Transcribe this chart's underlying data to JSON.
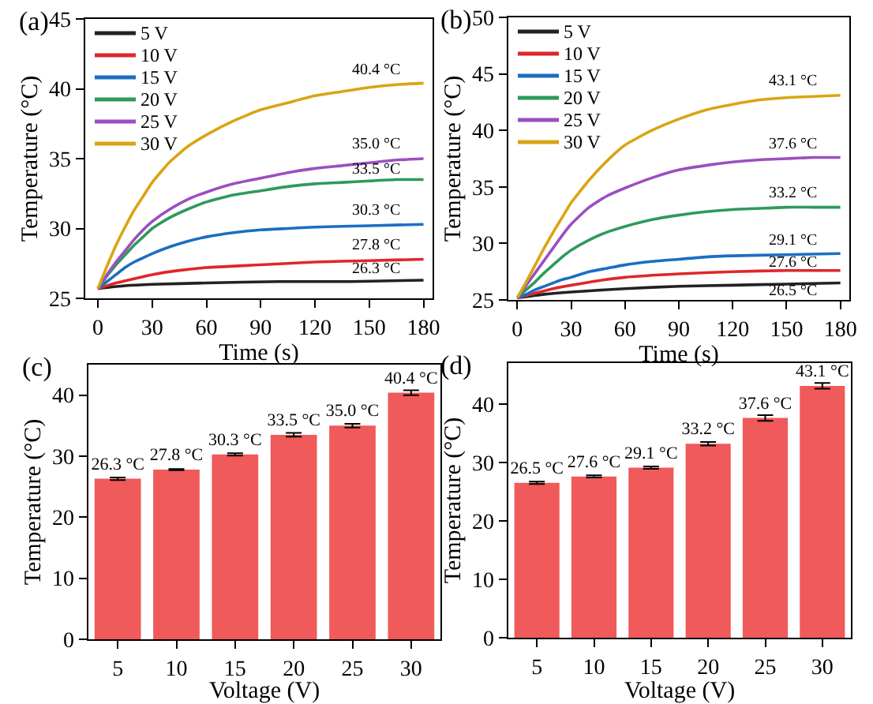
{
  "chart_data": [
    {
      "type": "line",
      "title": "(a)",
      "xlabel": "Time (s)",
      "ylabel": "Temperature (°C)",
      "xlim": [
        -7,
        185
      ],
      "xticks": [
        0,
        30,
        60,
        90,
        120,
        150,
        180
      ],
      "ylim": [
        25,
        45
      ],
      "yticks": [
        25,
        30,
        35,
        40,
        45
      ],
      "legend": "top left",
      "x": [
        0,
        5,
        10,
        15,
        20,
        25,
        30,
        40,
        50,
        60,
        75,
        90,
        105,
        120,
        135,
        150,
        165,
        180
      ],
      "series": [
        {
          "name": "5 V",
          "color": "#222222",
          "x": [
            0,
            15,
            30,
            60,
            100,
            140,
            180
          ],
          "values": [
            25.7,
            25.9,
            26.0,
            26.1,
            26.2,
            26.2,
            26.3
          ]
        },
        {
          "name": "10 V",
          "color": "#e0262b",
          "x": [
            0,
            10,
            20,
            30,
            45,
            60,
            90,
            120,
            150,
            180
          ],
          "values": [
            25.7,
            26.1,
            26.4,
            26.7,
            27.0,
            27.2,
            27.4,
            27.6,
            27.7,
            27.8
          ]
        },
        {
          "name": "15 V",
          "color": "#1b6ec2",
          "x": [
            0,
            5,
            10,
            15,
            20,
            25,
            30,
            40,
            50,
            60,
            75,
            90,
            105,
            120,
            150,
            180
          ],
          "values": [
            25.7,
            26.2,
            26.7,
            27.2,
            27.6,
            27.9,
            28.2,
            28.7,
            29.1,
            29.4,
            29.7,
            29.9,
            30.0,
            30.1,
            30.2,
            30.3
          ]
        },
        {
          "name": "20 V",
          "color": "#2e9a5a",
          "values": [
            25.7,
            26.6,
            27.4,
            28.1,
            28.8,
            29.4,
            30.0,
            30.8,
            31.4,
            31.9,
            32.4,
            32.7,
            33.0,
            33.2,
            33.3,
            33.4,
            33.5,
            33.5
          ]
        },
        {
          "name": "25 V",
          "color": "#9b4fc0",
          "values": [
            25.7,
            26.7,
            27.6,
            28.4,
            29.2,
            29.9,
            30.5,
            31.4,
            32.1,
            32.6,
            33.2,
            33.6,
            34.0,
            34.3,
            34.5,
            34.7,
            34.9,
            35.0
          ]
        },
        {
          "name": "30 V",
          "color": "#d9a514",
          "values": [
            25.7,
            27.3,
            28.8,
            30.1,
            31.3,
            32.3,
            33.3,
            34.8,
            35.9,
            36.7,
            37.7,
            38.5,
            39.0,
            39.5,
            39.8,
            40.1,
            40.3,
            40.4
          ]
        }
      ],
      "annotations": [
        {
          "text": "40.4 °C",
          "y": 40.4
        },
        {
          "text": "35.0 °C",
          "y": 35.0
        },
        {
          "text": "33.5 °C",
          "y": 33.5
        },
        {
          "text": "30.3 °C",
          "y": 30.3
        },
        {
          "text": "27.8 °C",
          "y": 27.8
        },
        {
          "text": "26.3 °C",
          "y": 26.3
        }
      ]
    },
    {
      "type": "line",
      "title": "(b)",
      "xlabel": "Time (s)",
      "ylabel": "Temperature (°C)",
      "xlim": [
        -5,
        185
      ],
      "xticks": [
        0,
        30,
        60,
        90,
        120,
        150,
        180
      ],
      "ylim": [
        25,
        50
      ],
      "yticks": [
        25,
        30,
        35,
        40,
        45,
        50
      ],
      "legend": "top left",
      "x": [
        0,
        5,
        10,
        15,
        20,
        25,
        30,
        40,
        50,
        60,
        75,
        90,
        105,
        120,
        135,
        150,
        165,
        180
      ],
      "series": [
        {
          "name": "5 V",
          "color": "#222222",
          "x": [
            0,
            15,
            30,
            60,
            90,
            120,
            150,
            180
          ],
          "values": [
            25.2,
            25.5,
            25.7,
            26.0,
            26.2,
            26.3,
            26.4,
            26.5
          ]
        },
        {
          "name": "10 V",
          "color": "#e0262b",
          "x": [
            0,
            10,
            20,
            30,
            45,
            60,
            90,
            120,
            150,
            180
          ],
          "values": [
            25.2,
            25.6,
            26.0,
            26.3,
            26.7,
            27.0,
            27.3,
            27.5,
            27.6,
            27.6
          ]
        },
        {
          "name": "15 V",
          "color": "#1b6ec2",
          "x": [
            0,
            5,
            10,
            15,
            20,
            25,
            30,
            40,
            50,
            60,
            75,
            90,
            105,
            120,
            150,
            180
          ],
          "values": [
            25.2,
            25.5,
            25.9,
            26.2,
            26.5,
            26.8,
            27.0,
            27.5,
            27.8,
            28.1,
            28.4,
            28.6,
            28.8,
            28.9,
            29.0,
            29.1
          ]
        },
        {
          "name": "20 V",
          "color": "#2e9a5a",
          "values": [
            25.2,
            25.9,
            26.6,
            27.4,
            28.1,
            28.8,
            29.4,
            30.3,
            31.0,
            31.5,
            32.1,
            32.5,
            32.8,
            33.0,
            33.1,
            33.2,
            33.2,
            33.2
          ]
        },
        {
          "name": "25 V",
          "color": "#9b4fc0",
          "values": [
            25.2,
            26.3,
            27.4,
            28.5,
            29.6,
            30.7,
            31.7,
            33.2,
            34.2,
            34.9,
            35.8,
            36.5,
            36.9,
            37.2,
            37.4,
            37.5,
            37.6,
            37.6
          ]
        },
        {
          "name": "30 V",
          "color": "#d9a514",
          "values": [
            25.2,
            26.6,
            28.1,
            29.6,
            31.0,
            32.3,
            33.6,
            35.6,
            37.3,
            38.7,
            40.0,
            41.0,
            41.8,
            42.3,
            42.7,
            42.9,
            43.0,
            43.1
          ]
        }
      ],
      "annotations": [
        {
          "text": "43.1 °C",
          "y": 43.1
        },
        {
          "text": "37.6 °C",
          "y": 37.6
        },
        {
          "text": "33.2 °C",
          "y": 33.2
        },
        {
          "text": "29.1 °C",
          "y": 29.1
        },
        {
          "text": "27.6 °C",
          "y": 27.6
        },
        {
          "text": "26.5 °C",
          "y": 26.5
        }
      ]
    },
    {
      "type": "bar",
      "title": "(c)",
      "xlabel": "Voltage (V)",
      "ylabel": "Temperature (°C)",
      "categories": [
        "5",
        "10",
        "15",
        "20",
        "25",
        "30"
      ],
      "values": [
        26.3,
        27.8,
        30.3,
        33.5,
        35.0,
        40.4
      ],
      "errors": [
        0.2,
        0.1,
        0.2,
        0.3,
        0.3,
        0.4
      ],
      "value_labels": [
        "26.3 °C",
        "27.8 °C",
        "30.3 °C",
        "33.5 °C",
        "35.0 °C",
        "40.4 °C"
      ],
      "color": "#f05a5a",
      "ylim": [
        0,
        45
      ],
      "yticks": [
        0,
        10,
        20,
        30,
        40
      ]
    },
    {
      "type": "bar",
      "title": "(d)",
      "xlabel": "Voltage (V)",
      "ylabel": "Temperature (°C)",
      "categories": [
        "5",
        "10",
        "15",
        "20",
        "25",
        "30"
      ],
      "values": [
        26.5,
        27.6,
        29.1,
        33.2,
        37.6,
        43.1
      ],
      "errors": [
        0.2,
        0.2,
        0.2,
        0.3,
        0.5,
        0.5
      ],
      "value_labels": [
        "26.5 °C",
        "27.6 °C",
        "29.1 °C",
        "33.2 °C",
        "37.6 °C",
        "43.1 °C"
      ],
      "color": "#f05a5a",
      "ylim": [
        0,
        47
      ],
      "yticks": [
        0,
        10,
        20,
        30,
        40
      ]
    }
  ]
}
